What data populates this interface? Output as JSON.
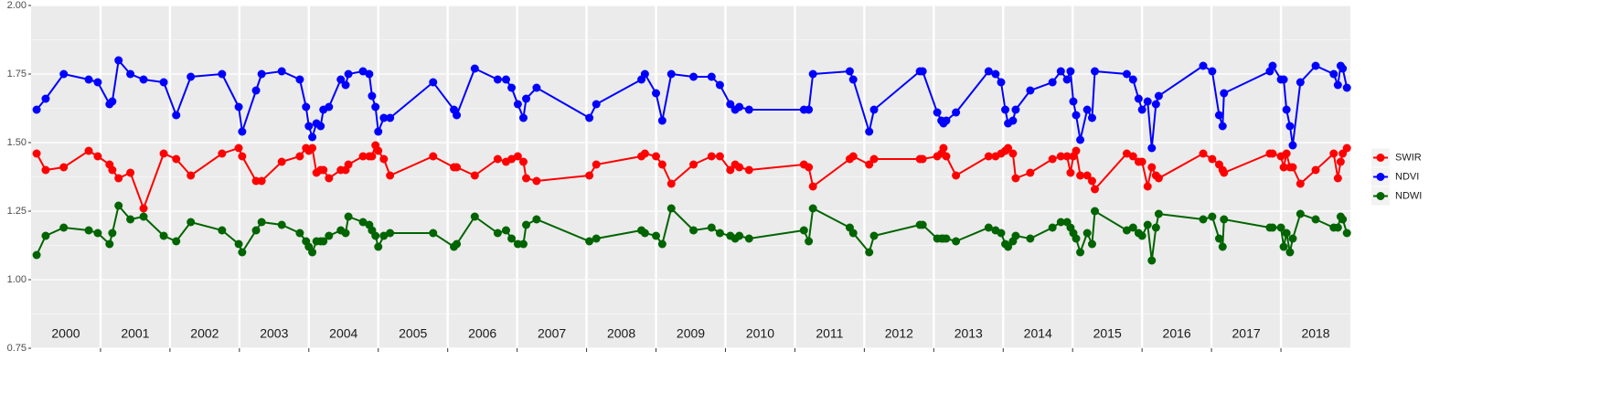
{
  "chart_data": {
    "type": "line",
    "xlim": [
      2000,
      2019
    ],
    "ylim": [
      0.75,
      2.0
    ],
    "yticks": [
      {
        "value": 0.75,
        "label": "0.75"
      },
      {
        "value": 1.0,
        "label": "1.00"
      },
      {
        "value": 1.25,
        "label": "1.25"
      },
      {
        "value": 1.5,
        "label": "1.50"
      },
      {
        "value": 1.75,
        "label": "1.75"
      },
      {
        "value": 2.0,
        "label": "2.00"
      }
    ],
    "xticks": [
      {
        "value": 2000.5,
        "label": "2000"
      },
      {
        "value": 2001.5,
        "label": "2001"
      },
      {
        "value": 2002.5,
        "label": "2002"
      },
      {
        "value": 2003.5,
        "label": "2003"
      },
      {
        "value": 2004.5,
        "label": "2004"
      },
      {
        "value": 2005.5,
        "label": "2005"
      },
      {
        "value": 2006.5,
        "label": "2006"
      },
      {
        "value": 2007.5,
        "label": "2007"
      },
      {
        "value": 2008.5,
        "label": "2008"
      },
      {
        "value": 2009.5,
        "label": "2009"
      },
      {
        "value": 2010.5,
        "label": "2010"
      },
      {
        "value": 2011.5,
        "label": "2011"
      },
      {
        "value": 2012.5,
        "label": "2012"
      },
      {
        "value": 2013.5,
        "label": "2013"
      },
      {
        "value": 2014.5,
        "label": "2014"
      },
      {
        "value": 2015.5,
        "label": "2015"
      },
      {
        "value": 2016.5,
        "label": "2016"
      },
      {
        "value": 2017.5,
        "label": "2017"
      },
      {
        "value": 2018.5,
        "label": "2018"
      }
    ],
    "xbreaks": [
      2001,
      2002,
      2003,
      2004,
      2005,
      2006,
      2007,
      2008,
      2009,
      2010,
      2011,
      2012,
      2013,
      2014,
      2015,
      2016,
      2017,
      2018
    ],
    "grid": true,
    "legend": "right",
    "x": [
      2000.08,
      2000.21,
      2000.47,
      2000.83,
      2000.96,
      2001.13,
      2001.17,
      2001.26,
      2001.43,
      2001.62,
      2001.91,
      2002.09,
      2002.3,
      2002.75,
      2002.99,
      2003.04,
      2003.24,
      2003.32,
      2003.61,
      2003.87,
      2003.96,
      2004.0,
      2004.05,
      2004.11,
      2004.17,
      2004.21,
      2004.29,
      2004.46,
      2004.53,
      2004.57,
      2004.78,
      2004.87,
      2004.91,
      2004.96,
      2005.0,
      2005.08,
      2005.17,
      2005.79,
      2006.09,
      2006.13,
      2006.39,
      2006.72,
      2006.84,
      2006.92,
      2007.01,
      2007.09,
      2007.13,
      2007.28,
      2008.04,
      2008.14,
      2008.79,
      2008.84,
      2009.0,
      2009.09,
      2009.22,
      2009.54,
      2009.8,
      2009.92,
      2010.07,
      2010.14,
      2010.2,
      2010.34,
      2011.13,
      2011.2,
      2011.26,
      2011.79,
      2011.84,
      2012.07,
      2012.14,
      2012.8,
      2012.84,
      2013.05,
      2013.11,
      2013.14,
      2013.18,
      2013.32,
      2013.79,
      2013.89,
      2013.97,
      2014.03,
      2014.07,
      2014.14,
      2014.18,
      2014.39,
      2014.71,
      2014.83,
      2014.92,
      2014.97,
      2015.01,
      2015.05,
      2015.11,
      2015.21,
      2015.28,
      2015.32,
      2015.78,
      2015.87,
      2015.95,
      2016.0,
      2016.08,
      2016.14,
      2016.2,
      2016.24,
      2016.88,
      2017.01,
      2017.11,
      2017.16,
      2017.18,
      2017.84,
      2017.88,
      2018.0,
      2018.04,
      2018.08,
      2018.13,
      2018.17,
      2018.28,
      2018.5,
      2018.76,
      2018.82,
      2018.86,
      2018.89,
      2018.95
    ],
    "series": [
      {
        "name": "SWIR",
        "color": "#ff0000",
        "values": [
          1.46,
          1.4,
          1.41,
          1.47,
          1.45,
          1.42,
          1.4,
          1.37,
          1.39,
          1.26,
          1.46,
          1.44,
          1.38,
          1.46,
          1.48,
          1.45,
          1.36,
          1.36,
          1.43,
          1.45,
          1.48,
          1.47,
          1.48,
          1.39,
          1.4,
          1.4,
          1.37,
          1.4,
          1.4,
          1.42,
          1.45,
          1.45,
          1.45,
          1.49,
          1.47,
          1.44,
          1.38,
          1.45,
          1.41,
          1.41,
          1.38,
          1.44,
          1.43,
          1.44,
          1.45,
          1.43,
          1.37,
          1.36,
          1.38,
          1.42,
          1.45,
          1.46,
          1.45,
          1.42,
          1.35,
          1.42,
          1.45,
          1.45,
          1.4,
          1.42,
          1.41,
          1.4,
          1.42,
          1.41,
          1.34,
          1.44,
          1.45,
          1.42,
          1.44,
          1.44,
          1.44,
          1.45,
          1.46,
          1.48,
          1.45,
          1.38,
          1.45,
          1.45,
          1.46,
          1.47,
          1.48,
          1.46,
          1.37,
          1.39,
          1.44,
          1.45,
          1.45,
          1.39,
          1.45,
          1.47,
          1.38,
          1.38,
          1.36,
          1.33,
          1.46,
          1.45,
          1.43,
          1.43,
          1.34,
          1.41,
          1.38,
          1.37,
          1.46,
          1.44,
          1.42,
          1.4,
          1.39,
          1.46,
          1.46,
          1.45,
          1.41,
          1.46,
          1.41,
          1.41,
          1.35,
          1.4,
          1.46,
          1.37,
          1.43,
          1.46,
          1.48
        ]
      },
      {
        "name": "NDVI",
        "color": "#0000ff",
        "values": [
          1.62,
          1.66,
          1.75,
          1.73,
          1.72,
          1.64,
          1.65,
          1.8,
          1.75,
          1.73,
          1.72,
          1.6,
          1.74,
          1.75,
          1.63,
          1.54,
          1.69,
          1.75,
          1.76,
          1.73,
          1.63,
          1.56,
          1.52,
          1.57,
          1.56,
          1.62,
          1.63,
          1.73,
          1.71,
          1.75,
          1.76,
          1.75,
          1.67,
          1.63,
          1.54,
          1.59,
          1.59,
          1.72,
          1.62,
          1.6,
          1.77,
          1.73,
          1.73,
          1.7,
          1.64,
          1.59,
          1.66,
          1.7,
          1.59,
          1.64,
          1.73,
          1.75,
          1.68,
          1.58,
          1.75,
          1.74,
          1.74,
          1.71,
          1.64,
          1.62,
          1.63,
          1.62,
          1.62,
          1.62,
          1.75,
          1.76,
          1.73,
          1.54,
          1.62,
          1.76,
          1.76,
          1.61,
          1.58,
          1.57,
          1.58,
          1.61,
          1.76,
          1.75,
          1.72,
          1.62,
          1.57,
          1.58,
          1.62,
          1.69,
          1.72,
          1.76,
          1.73,
          1.76,
          1.65,
          1.6,
          1.51,
          1.62,
          1.59,
          1.76,
          1.75,
          1.73,
          1.66,
          1.62,
          1.65,
          1.48,
          1.64,
          1.67,
          1.78,
          1.76,
          1.6,
          1.56,
          1.68,
          1.76,
          1.78,
          1.73,
          1.73,
          1.62,
          1.56,
          1.49,
          1.72,
          1.78,
          1.75,
          1.71,
          1.78,
          1.77,
          1.7
        ]
      },
      {
        "name": "NDWI",
        "color": "#006400",
        "values": [
          1.09,
          1.16,
          1.19,
          1.18,
          1.17,
          1.13,
          1.17,
          1.27,
          1.22,
          1.23,
          1.16,
          1.14,
          1.21,
          1.18,
          1.13,
          1.1,
          1.18,
          1.21,
          1.2,
          1.17,
          1.14,
          1.12,
          1.1,
          1.14,
          1.14,
          1.14,
          1.16,
          1.18,
          1.17,
          1.23,
          1.21,
          1.2,
          1.18,
          1.16,
          1.12,
          1.16,
          1.17,
          1.17,
          1.12,
          1.13,
          1.23,
          1.17,
          1.18,
          1.15,
          1.13,
          1.13,
          1.2,
          1.22,
          1.14,
          1.15,
          1.18,
          1.17,
          1.16,
          1.13,
          1.26,
          1.18,
          1.19,
          1.17,
          1.16,
          1.15,
          1.16,
          1.15,
          1.18,
          1.14,
          1.26,
          1.19,
          1.17,
          1.1,
          1.16,
          1.2,
          1.2,
          1.15,
          1.15,
          1.15,
          1.15,
          1.14,
          1.19,
          1.18,
          1.17,
          1.13,
          1.12,
          1.14,
          1.16,
          1.15,
          1.19,
          1.21,
          1.21,
          1.19,
          1.17,
          1.15,
          1.1,
          1.17,
          1.13,
          1.25,
          1.18,
          1.19,
          1.17,
          1.16,
          1.2,
          1.07,
          1.19,
          1.24,
          1.22,
          1.23,
          1.15,
          1.12,
          1.22,
          1.19,
          1.19,
          1.19,
          1.12,
          1.17,
          1.1,
          1.15,
          1.24,
          1.22,
          1.19,
          1.19,
          1.23,
          1.22,
          1.17
        ]
      }
    ]
  }
}
